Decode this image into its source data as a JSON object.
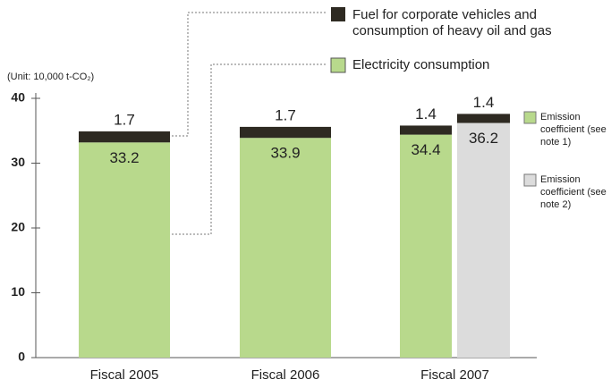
{
  "chart_data": {
    "type": "stacked_bar",
    "unit_label": "(Unit: 10,000 t-CO₂)",
    "categories": [
      "Fiscal 2005",
      "Fiscal 2006",
      "Fiscal 2007",
      null
    ],
    "series": [
      {
        "name": "Electricity consumption",
        "color": "#b8d98c",
        "colors": [
          "#b8d98c",
          "#b8d98c",
          "#b8d98c",
          "#dcdcdc"
        ],
        "values": [
          33.2,
          33.9,
          34.4,
          36.2
        ]
      },
      {
        "name": "Fuel for corporate vehicles and consumption of heavy oil and gas",
        "color": "#2e2a22",
        "values": [
          1.7,
          1.7,
          1.4,
          1.4
        ]
      }
    ],
    "notes": [
      {
        "label": "Emission coefficient (see note 1)",
        "color": "#b8d98c"
      },
      {
        "label": "Emission coefficient (see note 2)",
        "color": "#dcdcdc"
      }
    ],
    "ylim": [
      0,
      40
    ],
    "yticks": [
      0,
      10,
      20,
      30,
      40
    ]
  }
}
